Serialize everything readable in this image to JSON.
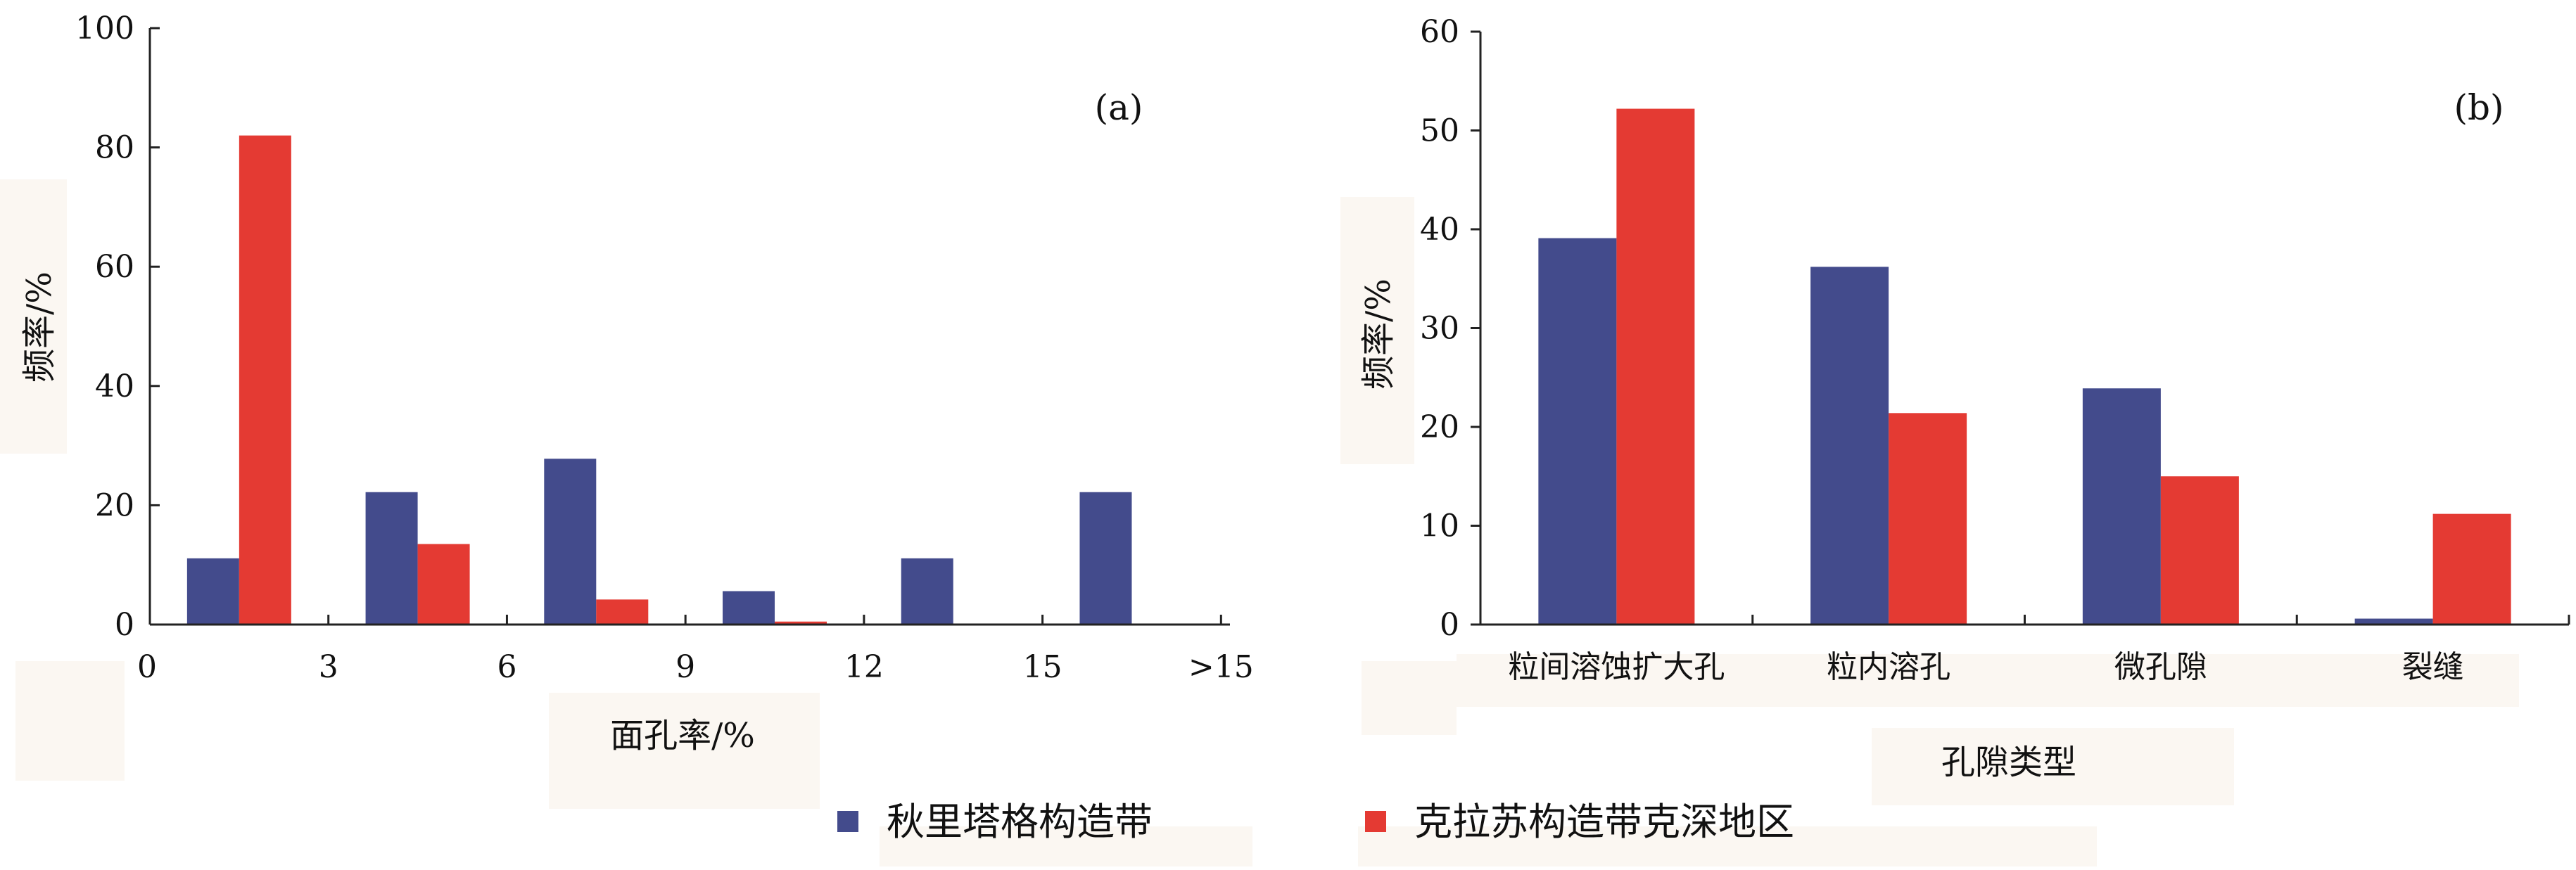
{
  "colors": {
    "series_blue": "#434b8c",
    "series_red": "#e43a33",
    "axis": "#222222",
    "label_bg": "#fbf7f2"
  },
  "legend": {
    "items": [
      "秋里塔格构造带",
      "克拉苏构造带克深地区"
    ]
  },
  "chart_data": [
    {
      "type": "bar",
      "panel_label": "(a)",
      "xlabel": "面孔率/%",
      "ylabel": "频率/%",
      "ylim": [
        0,
        100
      ],
      "yticks": [
        "0",
        "20",
        "40",
        "60",
        "80",
        "100"
      ],
      "xticks": [
        "0",
        "3",
        "6",
        "9",
        "12",
        "15",
        ">15"
      ],
      "categories": [
        "0–3",
        "3–6",
        "6–9",
        "9–12",
        "12–15",
        ">15"
      ],
      "series": [
        {
          "name": "秋里塔格构造带",
          "values": [
            11.1,
            22.2,
            27.8,
            5.6,
            11.1,
            22.2
          ]
        },
        {
          "name": "克拉苏构造带克深地区",
          "values": [
            82,
            13.5,
            4.2,
            0.5,
            0,
            0
          ]
        }
      ]
    },
    {
      "type": "bar",
      "panel_label": "(b)",
      "xlabel": "孔隙类型",
      "ylabel": "频率/%",
      "ylim": [
        0,
        60
      ],
      "yticks": [
        "0",
        "10",
        "20",
        "30",
        "40",
        "50",
        "60"
      ],
      "categories": [
        "粒间溶蚀扩大孔",
        "粒内溶孔",
        "微孔隙",
        "裂缝"
      ],
      "series": [
        {
          "name": "秋里塔格构造带",
          "values": [
            39.1,
            36.2,
            23.9,
            0.6
          ]
        },
        {
          "name": "克拉苏构造带克深地区",
          "values": [
            52.2,
            21.4,
            15.0,
            11.2
          ]
        }
      ]
    }
  ]
}
